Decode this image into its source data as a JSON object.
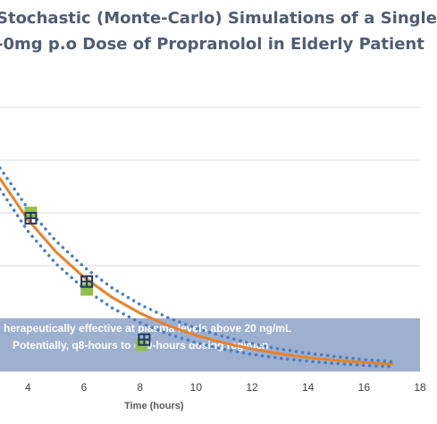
{
  "chart_data": {
    "type": "line",
    "title_lines": [
      "Stochastic (Monte-Carlo) Simulations of a Single",
      "-0mg p.o Dose of Propranolol in Elderly Patient"
    ],
    "xlabel": "Time (hours)",
    "ylabel": "",
    "xlim": [
      3,
      18
    ],
    "ylim": [
      0,
      100
    ],
    "x_ticks": [
      "4",
      "6",
      "8",
      "10",
      "12",
      "14",
      "16",
      "18"
    ],
    "grid": true,
    "series": [
      {
        "style": "solid",
        "color": "#e8822a",
        "x": [
          3.0,
          4,
          5,
          6,
          7,
          8,
          9,
          10,
          11,
          12,
          13,
          14,
          15,
          16,
          17
        ],
        "y": [
          73,
          57.4,
          45.2,
          35.6,
          28.0,
          22.0,
          17.3,
          13.6,
          10.7,
          8.4,
          6.6,
          5.2,
          4.1,
          3.3,
          2.6
        ]
      },
      {
        "style": "dotted",
        "color": "#4a7ec2",
        "x": [
          3.0,
          4,
          5,
          6,
          7,
          8,
          9,
          10,
          11,
          12,
          13,
          14,
          15,
          16,
          17
        ],
        "y": [
          77,
          61.6,
          49.3,
          39.5,
          31.6,
          25.3,
          20.3,
          16.3,
          13.1,
          10.5,
          8.4,
          6.8,
          5.5,
          4.4,
          3.6
        ]
      },
      {
        "style": "dotted",
        "color": "#4a7ec2",
        "x": [
          3.0,
          4,
          5,
          6,
          7,
          8,
          9,
          10,
          11,
          12,
          13,
          14,
          15,
          16,
          17
        ],
        "y": [
          69,
          53.0,
          40.7,
          31.3,
          24.0,
          18.4,
          14.1,
          10.8,
          8.3,
          6.4,
          4.9,
          3.8,
          2.9,
          2.2,
          1.7
        ]
      }
    ],
    "markers_green": {
      "color": "#92c050",
      "x": [
        4.1,
        6.1,
        8.05
      ],
      "y": [
        60,
        31,
        10
      ]
    },
    "markers_navy": {
      "color": "#1f3864",
      "x": [
        4.1,
        6.1,
        8.15
      ],
      "y": [
        58,
        34,
        12
      ]
    },
    "band": {
      "color": "#8fa5c9",
      "y_range": [
        0,
        20
      ],
      "text_lines": [
        "herapeutically effective at plasma levels above 20 ng/mL",
        "Potentially, q8-hours to q10-hours dosing regimen"
      ]
    }
  }
}
